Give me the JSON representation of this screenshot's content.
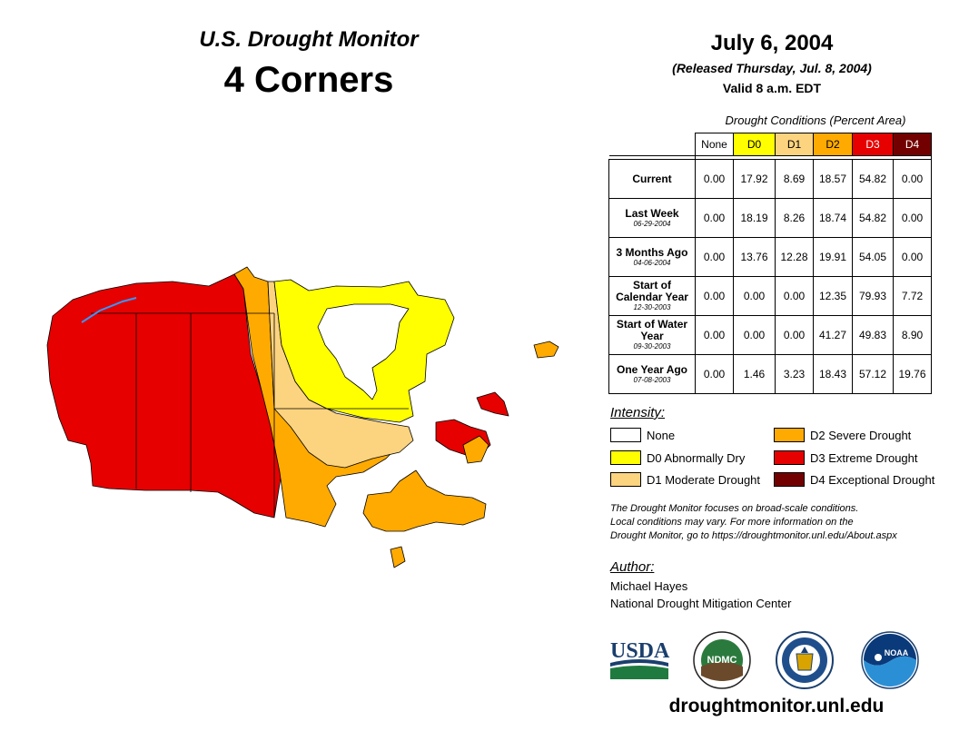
{
  "header": {
    "title": "U.S. Drought Monitor",
    "region": "4 Corners",
    "date": "July 6, 2004",
    "released": "(Released Thursday, Jul. 8, 2004)",
    "valid": "Valid 8 a.m. EDT"
  },
  "table": {
    "caption": "Drought Conditions (Percent Area)",
    "columns": [
      "None",
      "D0",
      "D1",
      "D2",
      "D3",
      "D4"
    ],
    "column_colors": [
      "#ffffff",
      "#ffff00",
      "#fcd37f",
      "#ffaa00",
      "#e60000",
      "#730000"
    ],
    "rows": [
      {
        "label": "Current",
        "date": "",
        "values": [
          "0.00",
          "17.92",
          "8.69",
          "18.57",
          "54.82",
          "0.00"
        ]
      },
      {
        "label": "Last Week",
        "date": "06-29-2004",
        "values": [
          "0.00",
          "18.19",
          "8.26",
          "18.74",
          "54.82",
          "0.00"
        ]
      },
      {
        "label": "3 Months Ago",
        "date": "04-06-2004",
        "values": [
          "0.00",
          "13.76",
          "12.28",
          "19.91",
          "54.05",
          "0.00"
        ]
      },
      {
        "label": "Start of Calendar Year",
        "date": "12-30-2003",
        "values": [
          "0.00",
          "0.00",
          "0.00",
          "12.35",
          "79.93",
          "7.72"
        ]
      },
      {
        "label": "Start of Water Year",
        "date": "09-30-2003",
        "values": [
          "0.00",
          "0.00",
          "0.00",
          "41.27",
          "49.83",
          "8.90"
        ]
      },
      {
        "label": "One Year Ago",
        "date": "07-08-2003",
        "values": [
          "0.00",
          "1.46",
          "3.23",
          "18.43",
          "57.12",
          "19.76"
        ]
      }
    ]
  },
  "legend": {
    "title": "Intensity:",
    "items": [
      {
        "label": "None",
        "color": "#ffffff"
      },
      {
        "label": "D0 Abnormally Dry",
        "color": "#ffff00"
      },
      {
        "label": "D1 Moderate Drought",
        "color": "#fcd37f"
      },
      {
        "label": "D2 Severe Drought",
        "color": "#ffaa00"
      },
      {
        "label": "D3 Extreme Drought",
        "color": "#e60000"
      },
      {
        "label": "D4 Exceptional Drought",
        "color": "#730000"
      }
    ]
  },
  "note": {
    "line1": "The Drought Monitor focuses on broad-scale conditions.",
    "line2": "Local conditions may vary. For more information on the",
    "line3": "Drought Monitor, go to https://droughtmonitor.unl.edu/About.aspx"
  },
  "author": {
    "title": "Author:",
    "name": "Michael Hayes",
    "org": "National Drought Mitigation Center"
  },
  "logos": {
    "usda": "USDA",
    "ndmc": "NDMC",
    "noaa": "NOAA"
  },
  "url": "droughtmonitor.unl.edu"
}
